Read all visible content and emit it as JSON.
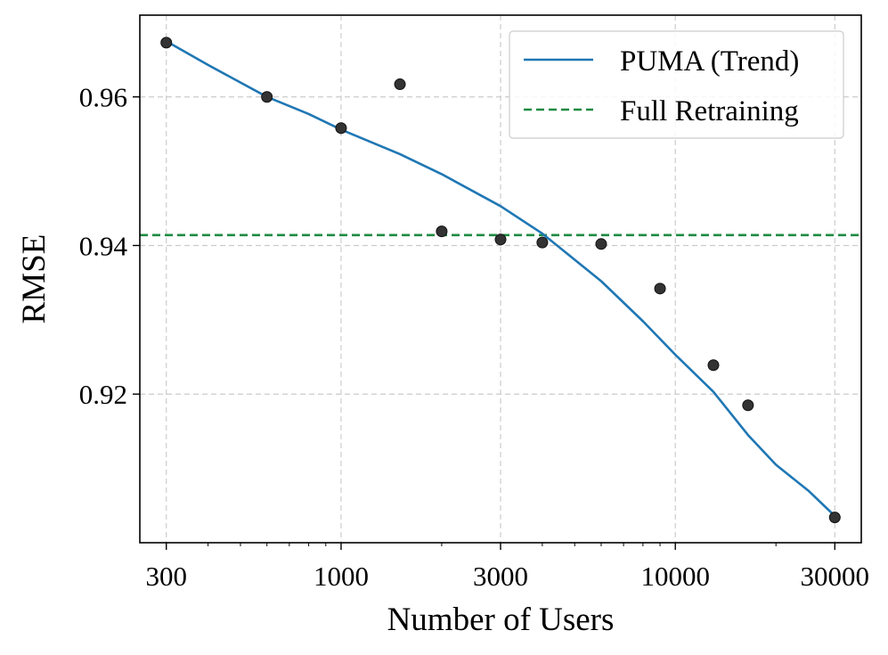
{
  "chart_data": {
    "type": "scatter",
    "xlabel": "Number of Users",
    "ylabel": "RMSE",
    "xscale": "log",
    "xlim": [
      250,
      36000
    ],
    "ylim": [
      0.9,
      0.971
    ],
    "x_ticks": [
      {
        "value": 300,
        "label": "300"
      },
      {
        "value": 1000,
        "label": "1000"
      },
      {
        "value": 3000,
        "label": "3000"
      },
      {
        "value": 10000,
        "label": "10000"
      },
      {
        "value": 30000,
        "label": "30000"
      }
    ],
    "y_ticks": [
      {
        "value": 0.92,
        "label": "0.92"
      },
      {
        "value": 0.94,
        "label": "0.94"
      },
      {
        "value": 0.96,
        "label": "0.96"
      }
    ],
    "grid": true,
    "legend_position": "top-right",
    "colors": {
      "trend": "#1f77b4",
      "baseline": "#1e8a42",
      "points": "#333333",
      "grid": "#cccccc"
    },
    "points": {
      "x": [
        300,
        600,
        1000,
        1500,
        2000,
        3000,
        4000,
        6000,
        9000,
        13000,
        16500,
        30000
      ],
      "y": [
        0.9673,
        0.96,
        0.9558,
        0.9617,
        0.9419,
        0.9408,
        0.9404,
        0.9402,
        0.9342,
        0.9239,
        0.9185,
        0.9034
      ]
    },
    "series": [
      {
        "name": "PUMA (Trend)",
        "style": "solid",
        "x": [
          300,
          400,
          600,
          800,
          1000,
          1500,
          2000,
          3000,
          4000,
          6000,
          8000,
          10000,
          13000,
          16500,
          20000,
          25000,
          30000
        ],
        "y": [
          0.9675,
          0.9643,
          0.96,
          0.9577,
          0.9556,
          0.9523,
          0.9496,
          0.9453,
          0.9416,
          0.9352,
          0.9298,
          0.9253,
          0.9203,
          0.9145,
          0.9105,
          0.907,
          0.9036
        ]
      },
      {
        "name": "Full Retraining",
        "style": "dashed",
        "y_constant": 0.9414
      }
    ]
  }
}
